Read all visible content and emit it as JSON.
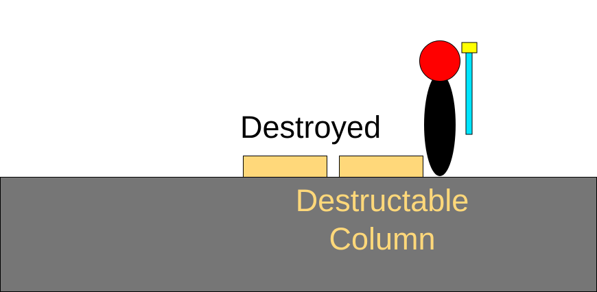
{
  "labels": {
    "destroyed": "Destroyed",
    "destructable_line1": "Destructable",
    "destructable_line2": "Column"
  },
  "colors": {
    "ground": "#767676",
    "block": "#FFD87A",
    "destructable_text": "#FFD87A",
    "destroyed_text": "#000000",
    "character_head": "#FF0000",
    "character_body": "#000000",
    "pole": "#00E5FF",
    "pole_cap": "#FFFF00"
  },
  "figure": {
    "character": "character-icon",
    "flag": "flag-pole-icon"
  }
}
